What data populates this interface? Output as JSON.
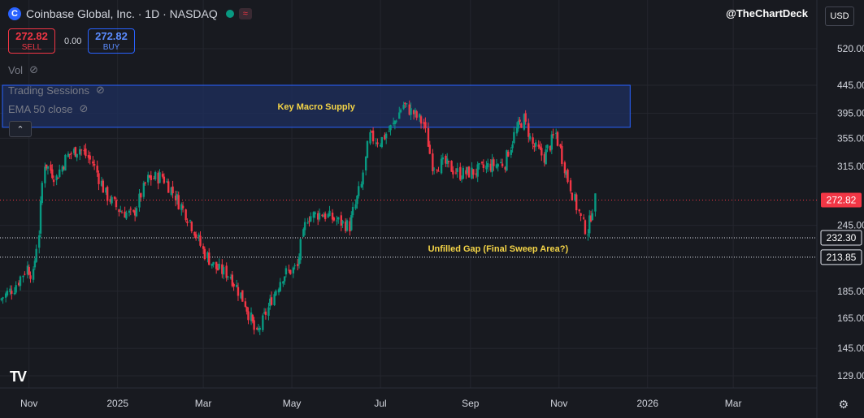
{
  "header": {
    "logo_letter": "C",
    "title": "Coinbase Global, Inc. · 1D · NASDAQ",
    "pill_symbol": "≈"
  },
  "trade": {
    "sell_price": "272.82",
    "sell_label": "SELL",
    "spread": "0.00",
    "buy_price": "272.82",
    "buy_label": "BUY"
  },
  "indicators": [
    {
      "label": "Vol"
    },
    {
      "label": "Trading Sessions"
    },
    {
      "label": "EMA 50 close"
    }
  ],
  "watermark": "@TheChartDeck",
  "currency": "USD",
  "colors": {
    "up": "#089981",
    "down": "#f23645",
    "background": "#181a20",
    "grid": "#24262e",
    "zone_fill": "#1e2f5e",
    "zone_border": "#2962ff",
    "annotation": "#f5d547"
  },
  "chart_data": {
    "type": "candlestick",
    "scale": "log",
    "ylim": [
      115,
      600
    ],
    "y_ticks": [
      520,
      445,
      395,
      355,
      315,
      245,
      185,
      165,
      145,
      129
    ],
    "y_tick_labels": [
      "520.00",
      "445.00",
      "395.00",
      "355.00",
      "315.00",
      "245.00",
      "185.00",
      "165.00",
      "145.00",
      "129.00"
    ],
    "x_range": [
      "2024-10-12",
      "2026-03-25"
    ],
    "x_ticks": [
      {
        "date": "2024-11-01",
        "label": "Nov"
      },
      {
        "date": "2025-01-01",
        "label": "2025"
      },
      {
        "date": "2025-03-01",
        "label": "Mar"
      },
      {
        "date": "2025-05-01",
        "label": "May"
      },
      {
        "date": "2025-07-01",
        "label": "Jul"
      },
      {
        "date": "2025-09-01",
        "label": "Sep"
      },
      {
        "date": "2025-11-01",
        "label": "Nov"
      },
      {
        "date": "2026-01-01",
        "label": "2026"
      },
      {
        "date": "2026-03-01",
        "label": "Mar"
      }
    ],
    "last_price": 272.82,
    "last_price_label": "272.82",
    "levels": [
      {
        "value": 232.3,
        "label": "232.30"
      },
      {
        "value": 213.85,
        "label": "213.85"
      }
    ],
    "zones": [
      {
        "label": "Key Macro Supply",
        "low": 372,
        "high": 445,
        "start": "2024-10-12",
        "end": "2025-12-20"
      }
    ],
    "annotations": [
      {
        "text": "Unfilled Gap (Final Sweep Area?)",
        "date": "2025-09-10",
        "value": 222
      }
    ],
    "series": [
      {
        "date": "2024-10-12",
        "close": 178
      },
      {
        "date": "2024-10-22",
        "close": 188
      },
      {
        "date": "2024-10-31",
        "close": 205
      },
      {
        "date": "2024-11-04",
        "close": 198
      },
      {
        "date": "2024-11-08",
        "close": 238
      },
      {
        "date": "2024-11-12",
        "close": 320
      },
      {
        "date": "2024-11-20",
        "close": 300
      },
      {
        "date": "2024-11-28",
        "close": 330
      },
      {
        "date": "2024-12-06",
        "close": 340
      },
      {
        "date": "2024-12-15",
        "close": 320
      },
      {
        "date": "2024-12-24",
        "close": 280
      },
      {
        "date": "2025-01-02",
        "close": 262
      },
      {
        "date": "2025-01-12",
        "close": 255
      },
      {
        "date": "2025-01-22",
        "close": 298
      },
      {
        "date": "2025-02-01",
        "close": 302
      },
      {
        "date": "2025-02-10",
        "close": 278
      },
      {
        "date": "2025-02-20",
        "close": 250
      },
      {
        "date": "2025-03-01",
        "close": 220
      },
      {
        "date": "2025-03-10",
        "close": 204
      },
      {
        "date": "2025-03-20",
        "close": 198
      },
      {
        "date": "2025-03-30",
        "close": 176
      },
      {
        "date": "2025-04-07",
        "close": 153
      },
      {
        "date": "2025-04-15",
        "close": 172
      },
      {
        "date": "2025-04-25",
        "close": 198
      },
      {
        "date": "2025-05-05",
        "close": 205
      },
      {
        "date": "2025-05-12",
        "close": 254
      },
      {
        "date": "2025-05-22",
        "close": 258
      },
      {
        "date": "2025-06-01",
        "close": 250
      },
      {
        "date": "2025-06-10",
        "close": 244
      },
      {
        "date": "2025-06-18",
        "close": 290
      },
      {
        "date": "2025-06-24",
        "close": 358
      },
      {
        "date": "2025-07-01",
        "close": 350
      },
      {
        "date": "2025-07-10",
        "close": 375
      },
      {
        "date": "2025-07-17",
        "close": 410
      },
      {
        "date": "2025-07-24",
        "close": 395
      },
      {
        "date": "2025-07-31",
        "close": 378
      },
      {
        "date": "2025-08-06",
        "close": 318
      },
      {
        "date": "2025-08-15",
        "close": 318
      },
      {
        "date": "2025-08-25",
        "close": 305
      },
      {
        "date": "2025-09-05",
        "close": 308
      },
      {
        "date": "2025-09-15",
        "close": 316
      },
      {
        "date": "2025-09-25",
        "close": 320
      },
      {
        "date": "2025-10-03",
        "close": 368
      },
      {
        "date": "2025-10-08",
        "close": 385
      },
      {
        "date": "2025-10-14",
        "close": 345
      },
      {
        "date": "2025-10-22",
        "close": 328
      },
      {
        "date": "2025-10-30",
        "close": 362
      },
      {
        "date": "2025-11-05",
        "close": 315
      },
      {
        "date": "2025-11-12",
        "close": 272
      },
      {
        "date": "2025-11-18",
        "close": 245
      },
      {
        "date": "2025-11-21",
        "close": 240
      },
      {
        "date": "2025-11-26",
        "close": 273
      }
    ]
  }
}
